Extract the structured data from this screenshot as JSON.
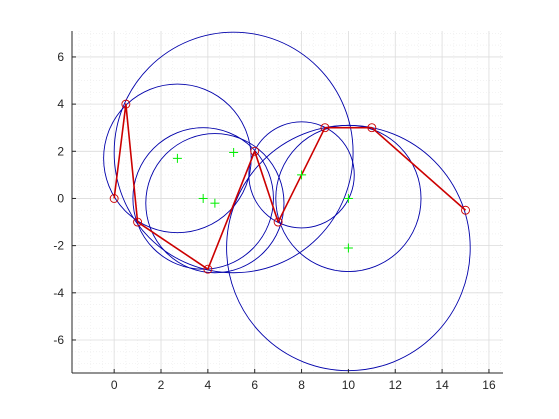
{
  "chart_data": {
    "type": "scatter",
    "title": "",
    "xlabel": "",
    "ylabel": "",
    "xlim": [
      -1.8,
      16.6
    ],
    "ylim": [
      -7.4,
      7.1
    ],
    "xticks": [
      0,
      2,
      4,
      6,
      8,
      10,
      12,
      14,
      16
    ],
    "yticks": [
      -6,
      -4,
      -2,
      0,
      2,
      4,
      6
    ],
    "grid": true,
    "minor_grid": true,
    "colors": {
      "axes_bg": "#ffffff",
      "grid": "#dcdcdc",
      "minor_grid": "#eeeeee",
      "axis": "#262626",
      "path": "#cc0000",
      "markers": "#cc0000",
      "circles": "#0000aa",
      "centers": "#00ee00"
    },
    "path_points": [
      {
        "x": 0,
        "y": 0
      },
      {
        "x": 0.5,
        "y": 4
      },
      {
        "x": 1,
        "y": -1
      },
      {
        "x": 4,
        "y": -3
      },
      {
        "x": 6,
        "y": 2
      },
      {
        "x": 7,
        "y": -1
      },
      {
        "x": 9,
        "y": 3
      },
      {
        "x": 11,
        "y": 3
      },
      {
        "x": 15,
        "y": -0.5
      }
    ],
    "circles": [
      {
        "cx": 2.7,
        "cy": 1.7,
        "r": 3.15
      },
      {
        "cx": 5.1,
        "cy": 1.95,
        "r": 5.1
      },
      {
        "cx": 3.8,
        "cy": 0.0,
        "r": 3.0
      },
      {
        "cx": 4.3,
        "cy": -0.2,
        "r": 2.95
      },
      {
        "cx": 8.0,
        "cy": 1.0,
        "r": 2.25
      },
      {
        "cx": 10.0,
        "cy": 0.0,
        "r": 3.1
      },
      {
        "cx": 10.0,
        "cy": -2.1,
        "r": 5.2
      }
    ],
    "centers": [
      {
        "x": 2.7,
        "y": 1.7
      },
      {
        "x": 5.1,
        "y": 1.95
      },
      {
        "x": 3.8,
        "y": 0.0
      },
      {
        "x": 4.3,
        "y": -0.2
      },
      {
        "x": 8.0,
        "y": 1.0
      },
      {
        "x": 10.0,
        "y": 0.0
      },
      {
        "x": 10.0,
        "y": -2.1
      }
    ]
  }
}
